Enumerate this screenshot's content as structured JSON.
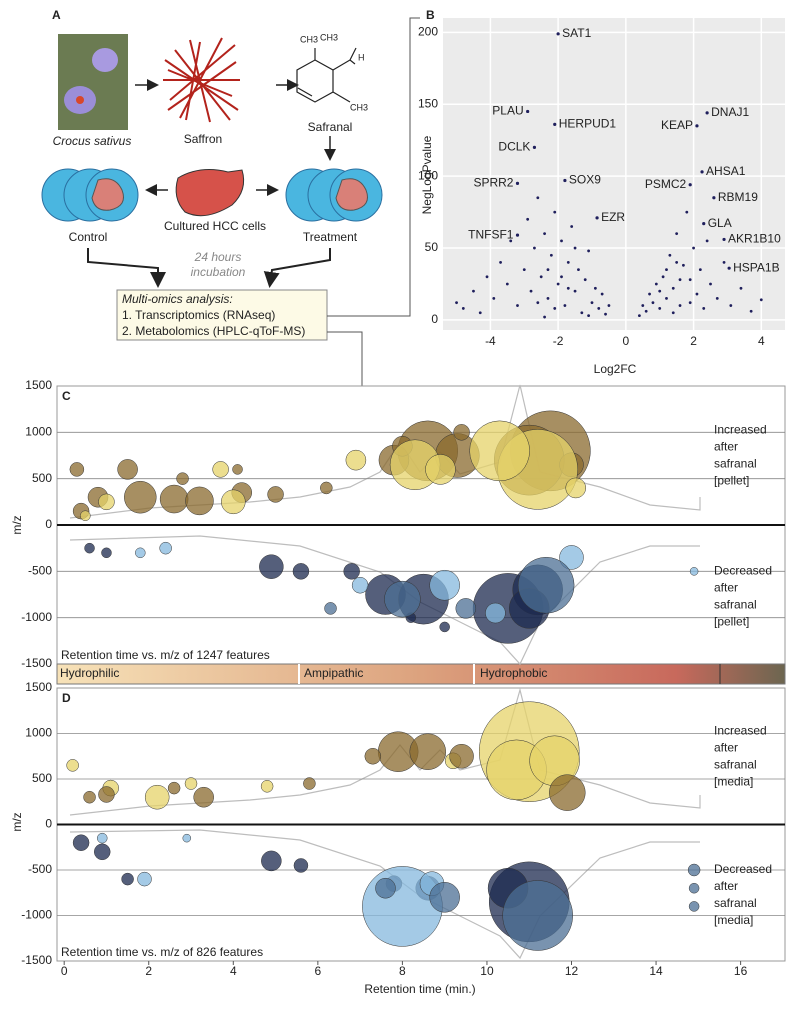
{
  "diagram": {
    "panel": "A",
    "species": "Crocus sativus",
    "saffron": "Saffron",
    "safranal": "Safranal",
    "structure_labels": [
      "CH3",
      "CH3",
      "H",
      "CH3"
    ],
    "control": "Control",
    "cells": "Cultured HCC cells",
    "treatment": "Treatment",
    "incubation": [
      "24 hours",
      "incubation"
    ],
    "analysis": {
      "title": "Multi-omics analysis:",
      "items": [
        "1. Transcriptomics (RNAseq)",
        "2. Metabolomics (HPLC-qToF-MS)"
      ]
    }
  },
  "gradient_bar": {
    "labels": [
      "Hydrophilic",
      "Ampipathic",
      "Hydrophobic"
    ]
  },
  "chart_data": [
    {
      "type": "scatter",
      "panel": "B",
      "x_label": "Log2FC",
      "y_label": "NegLogPvalue",
      "xlim": [
        -5.4,
        4.7
      ],
      "ylim": [
        -7,
        210
      ],
      "xticks": [
        -4,
        -2,
        0,
        2,
        4
      ],
      "yticks": [
        0,
        50,
        100,
        150,
        200
      ],
      "grid": true,
      "background": "#ebebeb",
      "points": {
        "color": "#1f1f5c",
        "x": [
          -5.0,
          -4.8,
          -4.5,
          -4.3,
          -4.1,
          -3.9,
          -3.7,
          -3.5,
          -3.4,
          -3.2,
          -3.0,
          -2.9,
          -2.8,
          -2.7,
          -2.6,
          -2.5,
          -2.4,
          -2.3,
          -2.2,
          -2.1,
          -2.0,
          -1.9,
          -1.8,
          -1.7,
          -1.6,
          -1.5,
          -1.4,
          -1.3,
          -1.2,
          -1.1,
          -1.0,
          -0.9,
          -0.8,
          -0.7,
          -0.6,
          -0.5,
          -2.3,
          -1.9,
          -2.1,
          -1.7,
          -2.6,
          -1.5,
          -2.4,
          -1.1,
          0.4,
          0.5,
          0.6,
          0.7,
          0.8,
          0.9,
          1.0,
          1.1,
          1.2,
          1.3,
          1.4,
          1.5,
          1.6,
          1.7,
          1.8,
          1.9,
          2.0,
          2.1,
          2.2,
          2.3,
          2.5,
          2.7,
          2.9,
          3.1,
          3.4,
          3.7,
          4.0,
          1.4,
          1.2,
          1.6,
          1.9,
          1.0,
          1.5,
          2.4
        ],
        "y": [
          12,
          8,
          20,
          5,
          30,
          15,
          40,
          25,
          55,
          10,
          35,
          70,
          20,
          50,
          85,
          30,
          60,
          15,
          45,
          75,
          25,
          55,
          10,
          40,
          65,
          20,
          35,
          5,
          28,
          48,
          12,
          22,
          8,
          18,
          4,
          10,
          35,
          30,
          8,
          22,
          12,
          50,
          2,
          3,
          3,
          10,
          6,
          18,
          12,
          25,
          8,
          30,
          15,
          45,
          22,
          60,
          10,
          38,
          75,
          28,
          50,
          18,
          35,
          8,
          25,
          15,
          40,
          10,
          22,
          6,
          14,
          5,
          35,
          28,
          12,
          20,
          40,
          55
        ]
      },
      "labeled_points": {
        "labels": [
          "SAT1",
          "PLAU",
          "HERPUD1",
          "DCLK",
          "SPRR2",
          "SOX9",
          "EZR",
          "TNFSF1",
          "KEAP",
          "DNAJ1",
          "AHSA1",
          "PSMC2",
          "RBM19",
          "GLA",
          "AKR1B10",
          "HSPA1B"
        ],
        "x": [
          -2.0,
          -2.9,
          -2.1,
          -2.7,
          -3.2,
          -1.8,
          -0.85,
          -3.2,
          2.1,
          2.4,
          2.25,
          1.9,
          2.6,
          2.3,
          2.9,
          3.05
        ],
        "y": [
          199,
          145,
          136,
          120,
          95,
          97,
          71,
          59,
          135,
          144,
          103,
          94,
          85,
          67,
          56,
          36
        ]
      }
    },
    {
      "type": "bubble",
      "panel": "C",
      "y_label": "m/z",
      "xlim": [
        -0.17,
        17.05
      ],
      "ylim": [
        -1500,
        1500
      ],
      "yticks": [
        -1500,
        -1000,
        -500,
        0,
        500,
        1000,
        1500
      ],
      "annotations": {
        "upper": [
          "Increased",
          "after",
          "safranal",
          "[pellet]"
        ],
        "lower": [
          "Decreased",
          "after",
          "safranal",
          "[pellet]"
        ]
      },
      "caption": "Retention time vs. m/z of 1247 features",
      "series": [
        {
          "color": "#8a6a2e",
          "x": [
            11.5,
            11.0,
            8.6,
            9.3,
            7.8,
            1.8,
            2.6,
            3.2,
            0.8,
            1.5,
            0.3,
            4.2,
            5.0,
            6.2,
            9.4,
            8.0,
            12.0,
            0.4,
            4.1,
            2.8
          ],
          "y": [
            800,
            700,
            800,
            750,
            700,
            300,
            280,
            260,
            300,
            600,
            600,
            350,
            330,
            400,
            1000,
            850,
            650,
            150,
            600,
            500
          ],
          "sizes": [
            40,
            35,
            30,
            22,
            15,
            16,
            14,
            14,
            10,
            10,
            7,
            10,
            8,
            6,
            8,
            10,
            12,
            8,
            5,
            6
          ]
        },
        {
          "color": "#e6d36a",
          "x": [
            11.2,
            10.3,
            8.3,
            4.0,
            3.7,
            6.9,
            1.0,
            0.5,
            12.1,
            8.9
          ],
          "y": [
            600,
            800,
            650,
            250,
            600,
            700,
            250,
            100,
            400,
            600
          ],
          "sizes": [
            40,
            30,
            25,
            12,
            8,
            10,
            8,
            5,
            10,
            15
          ]
        },
        {
          "color": "#1c2a4f",
          "x": [
            10.5,
            11.2,
            11.0,
            7.6,
            8.5,
            4.9,
            5.6,
            6.8,
            0.6,
            1.0,
            9.0,
            8.2
          ],
          "y": [
            -900,
            -700,
            -900,
            -750,
            -800,
            -450,
            -500,
            -500,
            -250,
            -300,
            -1100,
            -1000
          ],
          "sizes": [
            35,
            25,
            20,
            20,
            25,
            12,
            8,
            8,
            5,
            5,
            5,
            5
          ]
        },
        {
          "color": "#86b8de",
          "x": [
            12.0,
            9.0,
            7.0,
            1.8,
            2.4,
            10.2,
            14.9
          ],
          "y": [
            -350,
            -650,
            -650,
            -300,
            -250,
            -950,
            -500
          ],
          "sizes": [
            12,
            15,
            8,
            5,
            6,
            10,
            4
          ]
        },
        {
          "color": "#4c6f94",
          "x": [
            11.4,
            8.0,
            9.5,
            6.3
          ],
          "y": [
            -650,
            -800,
            -900,
            -900
          ],
          "sizes": [
            28,
            18,
            10,
            6
          ]
        }
      ]
    },
    {
      "type": "bubble",
      "panel": "D",
      "y_label": "m/z",
      "x_label": "Retention time (min.)",
      "xlim": [
        -0.17,
        17.05
      ],
      "ylim": [
        -1500,
        1500
      ],
      "yticks": [
        -1500,
        -1000,
        -500,
        0,
        500,
        1000,
        1500
      ],
      "xticks": [
        0,
        2,
        4,
        6,
        8,
        10,
        12,
        14,
        16
      ],
      "annotations": {
        "upper": [
          "Increased",
          "after",
          "safranal",
          "[media]"
        ],
        "lower": [
          "Decreased",
          "after",
          "safranal",
          "[media]"
        ]
      },
      "caption": "Retention time vs. m/z of 826 features",
      "series": [
        {
          "color": "#e6d36a",
          "x": [
            11.0,
            10.7,
            11.6,
            2.2,
            1.1,
            3.0,
            0.2,
            4.8,
            9.2
          ],
          "y": [
            800,
            600,
            700,
            300,
            400,
            450,
            650,
            420,
            700
          ],
          "sizes": [
            50,
            30,
            25,
            12,
            8,
            6,
            6,
            6,
            8
          ]
        },
        {
          "color": "#8a6a2e",
          "x": [
            7.9,
            8.6,
            9.4,
            11.9,
            1.0,
            3.3,
            7.3,
            5.8,
            0.6,
            2.6
          ],
          "y": [
            800,
            800,
            750,
            350,
            330,
            300,
            750,
            450,
            300,
            400
          ],
          "sizes": [
            20,
            18,
            12,
            18,
            8,
            10,
            8,
            6,
            6,
            6
          ]
        },
        {
          "color": "#1c2a4f",
          "x": [
            11.0,
            10.5,
            0.9,
            0.4,
            4.9,
            5.6,
            7.8,
            8.6,
            1.5
          ],
          "y": [
            -850,
            -700,
            -300,
            -200,
            -400,
            -450,
            -650,
            -700,
            -600
          ],
          "sizes": [
            40,
            20,
            8,
            8,
            10,
            7,
            8,
            12,
            6
          ]
        },
        {
          "color": "#86b8de",
          "x": [
            8.0,
            8.7,
            1.9,
            0.9,
            2.9
          ],
          "y": [
            -900,
            -650,
            -600,
            -150,
            -150
          ],
          "sizes": [
            40,
            12,
            7,
            5,
            4
          ]
        },
        {
          "color": "#4c6f94",
          "x": [
            11.2,
            9.0,
            14.9,
            14.9,
            14.9,
            7.6
          ],
          "y": [
            -1000,
            -800,
            -700,
            -900,
            -500,
            -700
          ],
          "sizes": [
            35,
            15,
            5,
            5,
            6,
            10
          ]
        }
      ]
    }
  ]
}
